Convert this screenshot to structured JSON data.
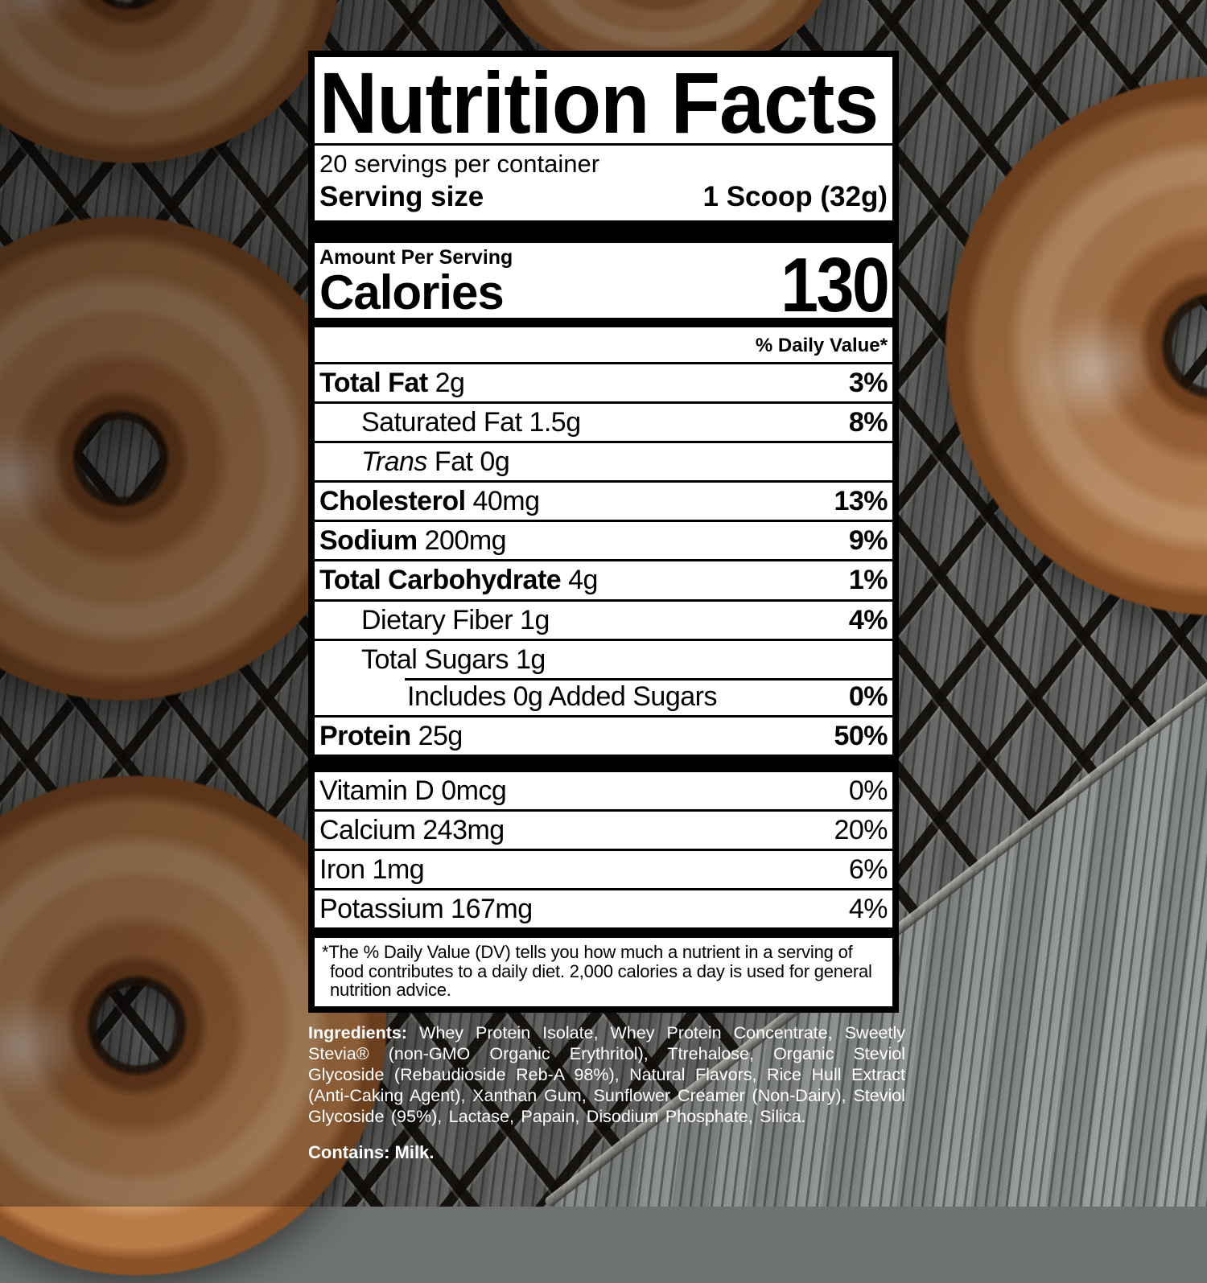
{
  "photo": {
    "colors": {
      "glaze_mid": "#c68c5b",
      "glaze_light": "#d2a072",
      "glaze_dark": "#7d4620",
      "fabric_light": "#8f9492",
      "fabric_dark": "#3a3f3e",
      "rack_wire": "#0c0907",
      "label_bg": "#ffffff",
      "label_fg": "#000000",
      "photo_text": "#ffffff"
    }
  },
  "label": {
    "title": "Nutrition Facts",
    "servings_per_container": "20 servings per container",
    "serving_size": {
      "label": "Serving size",
      "value": "1 Scoop (32g)"
    },
    "amount_per_serving": "Amount Per Serving",
    "calories": {
      "label": "Calories",
      "value": "130"
    },
    "daily_value_header": "% Daily Value*",
    "main_rows": [
      {
        "bold": "Total Fat",
        "text": " 2g",
        "dv": "3%",
        "indent": 0
      },
      {
        "text": "Saturated Fat 1.5g",
        "dv": "8%",
        "indent": 1
      },
      {
        "italic": "Trans",
        "text": " Fat 0g",
        "dv": "",
        "indent": 1
      },
      {
        "bold": "Cholesterol",
        "text": " 40mg",
        "dv": "13%",
        "indent": 0
      },
      {
        "bold": "Sodium",
        "text": " 200mg",
        "dv": "9%",
        "indent": 0
      },
      {
        "bold": "Total Carbohydrate",
        "text": " 4g",
        "dv": "1%",
        "indent": 0
      },
      {
        "text": "Dietary Fiber 1g",
        "dv": "4%",
        "indent": 1
      },
      {
        "text": "Total Sugars 1g",
        "dv": "",
        "indent": 1
      },
      {
        "text": "Includes 0g Added Sugars",
        "dv": "0%",
        "indent": 2,
        "partial_rule": true
      },
      {
        "bold": "Protein",
        "text": " 25g",
        "dv": "50%",
        "indent": 0
      }
    ],
    "vitamin_rows": [
      {
        "text": "Vitamin D 0mcg",
        "dv": "0%"
      },
      {
        "text": "Calcium 243mg",
        "dv": "20%"
      },
      {
        "text": "Iron 1mg",
        "dv": "6%"
      },
      {
        "text": "Potassium 167mg",
        "dv": "4%"
      }
    ],
    "footnote": "*The % Daily Value (DV) tells you how much a nutrient in a serving of food contributes to a daily diet. 2,000 calories a day is used for general nutrition advice."
  },
  "ingredients": {
    "prefix": "Ingredients:",
    "text": "Whey Protein Isolate, Whey Protein Concentrate, Sweetly Stevia® (non-GMO Organic Erythritol), Ttrehalose, Organic Steviol Glycoside (Rebaudioside Reb-A 98%), Natural Flavors, Rice Hull Extract (Anti-Caking Agent), Xanthan Gum, Sunflower Creamer (Non-Dairy), Steviol Glycoside (95%), Lactase, Papain, Disodium Phosphate, Silica."
  },
  "contains": "Contains: Milk."
}
